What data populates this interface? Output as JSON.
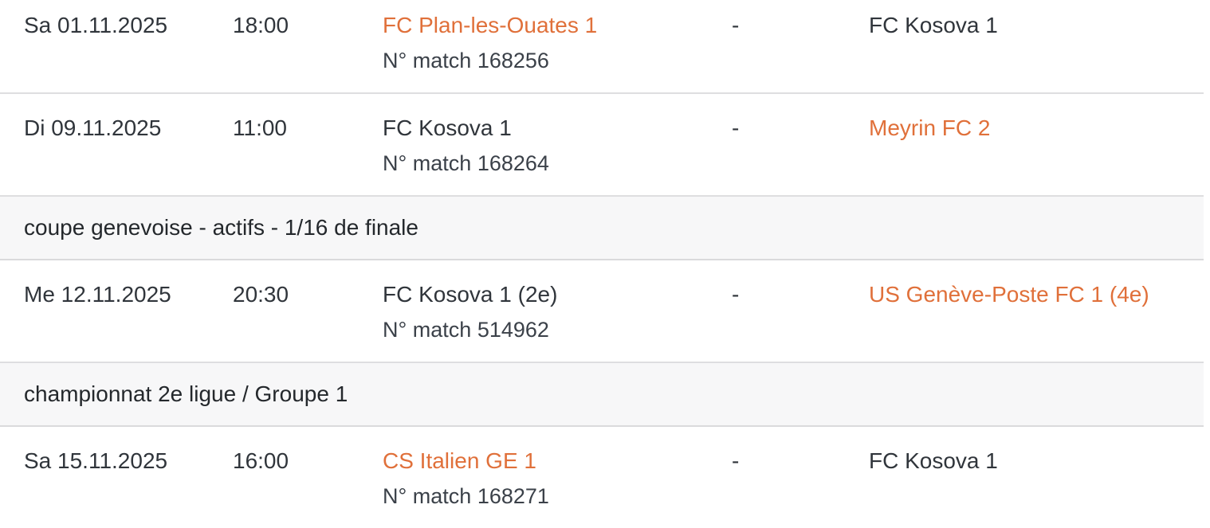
{
  "colors": {
    "accent": "#e0703a",
    "text": "#30353b",
    "muted_text": "#3b4149",
    "header_bg": "#f7f7f8",
    "divider": "#dedee0"
  },
  "separator": "-",
  "matches": [
    {
      "date": "Sa 01.11.2025",
      "time": "18:00",
      "home": "FC Plan-les-Ouates 1",
      "away": "FC Kosova 1",
      "match_number_label": "N° match 168256"
    },
    {
      "date": "Di 09.11.2025",
      "time": "11:00",
      "home": "FC Kosova 1",
      "away": "Meyrin FC 2",
      "match_number_label": "N° match 168264"
    },
    {
      "date": "Me 12.11.2025",
      "time": "20:30",
      "home": "FC Kosova 1 (2e)",
      "away": "US Genève-Poste FC 1 (4e)",
      "match_number_label": "N° match 514962"
    },
    {
      "date": "Sa 15.11.2025",
      "time": "16:00",
      "home": "CS Italien GE 1",
      "away": "FC Kosova 1",
      "match_number_label": "N° match 168271"
    }
  ],
  "section_headers": [
    {
      "label": "coupe genevoise - actifs - 1/16 de finale"
    },
    {
      "label": "championnat 2e ligue / Groupe 1"
    }
  ]
}
